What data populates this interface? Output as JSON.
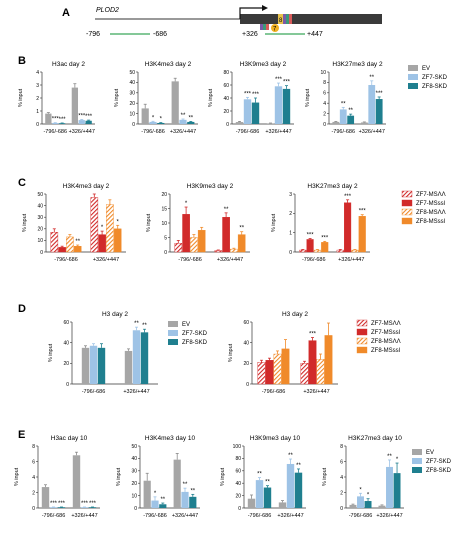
{
  "colors": {
    "EV": "#a6a6a6",
    "ZF7-SKD": "#9ec3e6",
    "ZF8-SKD": "#1f7f8f",
    "ZF7-MS": "#d12a2a",
    "ZF8-MS": "#f08a2a",
    "axis": "#333333",
    "gene_box": "#3a3a3a",
    "primer_line": "#3aa65a"
  },
  "panel_labels": [
    "A",
    "B",
    "C",
    "D",
    "E"
  ],
  "panel_a": {
    "gene": "PLOD2",
    "primer1_left": "-796",
    "primer1_right": "-686",
    "primer2_left": "+326",
    "primer2_right": "+447",
    "zf_marks": [
      "8",
      "7"
    ]
  },
  "legends": {
    "skd": [
      "EV",
      "ZF7-SKD",
      "ZF8-SKD"
    ],
    "ms": [
      "ZF7-MSΛΛ",
      "ZF7-MSssl",
      "ZF8-MSΛΛ",
      "ZF8-MSssl"
    ]
  },
  "chart_data": [
    {
      "panel": "B",
      "type": "bar",
      "title": "H3ac day 2",
      "ylabel": "% input",
      "categories": [
        "-796/-686",
        "+326/+447"
      ],
      "ylim": [
        0,
        4
      ],
      "yticks": [
        0,
        1,
        2,
        3,
        4
      ],
      "series": [
        {
          "name": "EV",
          "values": [
            0.8,
            2.8
          ],
          "errors": [
            0.08,
            0.3
          ]
        },
        {
          "name": "ZF7-SKD",
          "values": [
            0.08,
            0.3
          ],
          "errors": [
            0.02,
            0.05
          ]
        },
        {
          "name": "ZF8-SKD",
          "values": [
            0.06,
            0.25
          ],
          "errors": [
            0.02,
            0.05
          ]
        }
      ],
      "annotations": [
        [
          "",
          "***",
          "***"
        ],
        [
          "",
          "***",
          "***"
        ]
      ]
    },
    {
      "panel": "B",
      "type": "bar",
      "title": "H3K4me3 day 2",
      "ylabel": "% input",
      "categories": [
        "-796/-686",
        "+326/+447"
      ],
      "ylim": [
        0,
        50
      ],
      "yticks": [
        0,
        10,
        20,
        30,
        40,
        50
      ],
      "series": [
        {
          "name": "EV",
          "values": [
            15,
            41
          ],
          "errors": [
            4,
            3
          ]
        },
        {
          "name": "ZF7-SKD",
          "values": [
            2,
            4
          ],
          "errors": [
            0.6,
            0.8
          ]
        },
        {
          "name": "ZF8-SKD",
          "values": [
            1,
            2
          ],
          "errors": [
            0.4,
            0.5
          ]
        }
      ],
      "annotations": [
        [
          "",
          "*",
          "*"
        ],
        [
          "",
          "**",
          "**"
        ]
      ]
    },
    {
      "panel": "B",
      "type": "bar",
      "title": "H3K9me3 day 2",
      "ylabel": "% input",
      "categories": [
        "-796/-686",
        "+326/+447"
      ],
      "ylim": [
        0,
        80
      ],
      "yticks": [
        0,
        20,
        40,
        60,
        80
      ],
      "series": [
        {
          "name": "EV",
          "values": [
            3,
            1
          ],
          "errors": [
            1,
            0.5
          ]
        },
        {
          "name": "ZF7-SKD",
          "values": [
            38,
            58
          ],
          "errors": [
            3,
            5
          ]
        },
        {
          "name": "ZF8-SKD",
          "values": [
            33,
            54
          ],
          "errors": [
            7,
            5
          ]
        }
      ],
      "annotations": [
        [
          "",
          "***",
          "***"
        ],
        [
          "",
          "***",
          "***"
        ]
      ]
    },
    {
      "panel": "B",
      "type": "bar",
      "title": "H3K27me3 day 2",
      "ylabel": "% input",
      "categories": [
        "-796/-686",
        "+326/+447"
      ],
      "ylim": [
        0,
        10
      ],
      "yticks": [
        0,
        2,
        4,
        6,
        8,
        10
      ],
      "series": [
        {
          "name": "EV",
          "values": [
            0.4,
            0.3
          ],
          "errors": [
            0.1,
            0.1
          ]
        },
        {
          "name": "ZF7-SKD",
          "values": [
            2.8,
            7.5
          ],
          "errors": [
            0.4,
            0.8
          ]
        },
        {
          "name": "ZF8-SKD",
          "values": [
            1.6,
            4.8
          ],
          "errors": [
            0.3,
            0.4
          ]
        }
      ],
      "annotations": [
        [
          "",
          "**",
          "**"
        ],
        [
          "",
          "**",
          "***"
        ]
      ]
    },
    {
      "panel": "C",
      "type": "bar",
      "title": "H3K4me3 day 2",
      "ylabel": "% input",
      "categories": [
        "-796/-686",
        "+326/+447"
      ],
      "ylim": [
        0,
        50
      ],
      "yticks": [
        0,
        10,
        20,
        30,
        40,
        50
      ],
      "series": [
        {
          "name": "ZF7-MSΛΛ",
          "values": [
            17,
            47
          ],
          "errors": [
            3,
            3
          ]
        },
        {
          "name": "ZF7-MSssl",
          "values": [
            4,
            15
          ],
          "errors": [
            1,
            3
          ]
        },
        {
          "name": "ZF8-MSΛΛ",
          "values": [
            13,
            41
          ],
          "errors": [
            2,
            4
          ]
        },
        {
          "name": "ZF8-MSssl",
          "values": [
            5,
            20
          ],
          "errors": [
            1,
            3
          ]
        }
      ],
      "annotations": [
        [
          "",
          "",
          "",
          "**"
        ],
        [
          "",
          "*",
          "",
          "*"
        ]
      ]
    },
    {
      "panel": "C",
      "type": "bar",
      "title": "H3K9me3 day 2",
      "ylabel": "% input",
      "categories": [
        "-796/-686",
        "+326/+447"
      ],
      "ylim": [
        0,
        20
      ],
      "yticks": [
        0,
        5,
        10,
        15,
        20
      ],
      "series": [
        {
          "name": "ZF7-MSΛΛ",
          "values": [
            3,
            0.5
          ],
          "errors": [
            1,
            0.2
          ]
        },
        {
          "name": "ZF7-MSssl",
          "values": [
            13,
            12
          ],
          "errors": [
            2.5,
            1.5
          ]
        },
        {
          "name": "ZF8-MSΛΛ",
          "values": [
            5,
            1
          ],
          "errors": [
            1,
            0.3
          ]
        },
        {
          "name": "ZF8-MSssl",
          "values": [
            7.5,
            6
          ],
          "errors": [
            1,
            1
          ]
        }
      ],
      "annotations": [
        [
          "",
          "*",
          "",
          ""
        ],
        [
          "",
          "**",
          "",
          "**"
        ]
      ]
    },
    {
      "panel": "C",
      "type": "bar",
      "title": "H3K27me3 day 2",
      "ylabel": "% input",
      "categories": [
        "-796/-686",
        "+326/+447"
      ],
      "ylim": [
        0,
        3
      ],
      "yticks": [
        0,
        1,
        2,
        3
      ],
      "series": [
        {
          "name": "ZF7-MSΛΛ",
          "values": [
            0.1,
            0.1
          ],
          "errors": [
            0.03,
            0.03
          ]
        },
        {
          "name": "ZF7-MSssl",
          "values": [
            0.65,
            2.55
          ],
          "errors": [
            0.05,
            0.15
          ]
        },
        {
          "name": "ZF8-MSΛΛ",
          "values": [
            0.1,
            0.1
          ],
          "errors": [
            0.03,
            0.03
          ]
        },
        {
          "name": "ZF8-MSssl",
          "values": [
            0.5,
            1.85
          ],
          "errors": [
            0.05,
            0.08
          ]
        }
      ],
      "annotations": [
        [
          "",
          "***",
          "",
          "***"
        ],
        [
          "",
          "***",
          "",
          "***"
        ]
      ]
    },
    {
      "panel": "D",
      "type": "bar",
      "title": "H3 day 2",
      "ylabel": "% input",
      "categories": [
        "-796/-686",
        "+326/+447"
      ],
      "ylim": [
        0,
        60
      ],
      "yticks": [
        0,
        20,
        40,
        60
      ],
      "series": [
        {
          "name": "EV",
          "values": [
            35,
            32
          ],
          "errors": [
            2,
            2
          ]
        },
        {
          "name": "ZF7-SKD",
          "values": [
            37,
            52
          ],
          "errors": [
            2,
            3
          ]
        },
        {
          "name": "ZF8-SKD",
          "values": [
            35,
            50
          ],
          "errors": [
            4,
            3
          ]
        }
      ],
      "annotations": [
        [
          "",
          "",
          ""
        ],
        [
          "",
          "**",
          "**"
        ]
      ]
    },
    {
      "panel": "D",
      "type": "bar",
      "title": "H3 day 2",
      "ylabel": "% input",
      "categories": [
        "-796/-686",
        "+326/+447"
      ],
      "ylim": [
        0,
        60
      ],
      "yticks": [
        0,
        20,
        40,
        60
      ],
      "series": [
        {
          "name": "ZF7-MSΛΛ",
          "values": [
            21,
            20
          ],
          "errors": [
            2,
            2
          ]
        },
        {
          "name": "ZF7-MSssl",
          "values": [
            23,
            42
          ],
          "errors": [
            2,
            3
          ]
        },
        {
          "name": "ZF8-MSΛΛ",
          "values": [
            29,
            24
          ],
          "errors": [
            3,
            5
          ]
        },
        {
          "name": "ZF8-MSssl",
          "values": [
            34,
            47
          ],
          "errors": [
            9,
            12
          ]
        }
      ],
      "annotations": [
        [
          "",
          "",
          "",
          ""
        ],
        [
          "",
          "***",
          "",
          ""
        ]
      ]
    },
    {
      "panel": "E",
      "type": "bar",
      "title": "H3ac day 10",
      "ylabel": "% input",
      "categories": [
        "-796/-686",
        "+326/+447"
      ],
      "ylim": [
        0,
        8
      ],
      "yticks": [
        0,
        2,
        4,
        6,
        8
      ],
      "series": [
        {
          "name": "EV",
          "values": [
            2.7,
            6.8
          ],
          "errors": [
            0.3,
            0.4
          ]
        },
        {
          "name": "ZF7-SKD",
          "values": [
            0.1,
            0.1
          ],
          "errors": [
            0.03,
            0.03
          ]
        },
        {
          "name": "ZF8-SKD",
          "values": [
            0.1,
            0.1
          ],
          "errors": [
            0.03,
            0.03
          ]
        }
      ],
      "annotations": [
        [
          "",
          "***",
          "***"
        ],
        [
          "",
          "***",
          "***"
        ]
      ]
    },
    {
      "panel": "E",
      "type": "bar",
      "title": "H3K4me3 day 10",
      "ylabel": "% input",
      "categories": [
        "-796/-686",
        "+326/+447"
      ],
      "ylim": [
        0,
        50
      ],
      "yticks": [
        0,
        10,
        20,
        30,
        40,
        50
      ],
      "series": [
        {
          "name": "EV",
          "values": [
            22,
            39
          ],
          "errors": [
            6,
            5
          ]
        },
        {
          "name": "ZF7-SKD",
          "values": [
            6,
            13
          ],
          "errors": [
            3,
            3
          ]
        },
        {
          "name": "ZF8-SKD",
          "values": [
            3,
            9
          ],
          "errors": [
            1,
            2
          ]
        }
      ],
      "annotations": [
        [
          "",
          "*",
          "**"
        ],
        [
          "",
          "**",
          "**"
        ]
      ]
    },
    {
      "panel": "E",
      "type": "bar",
      "title": "H3K9me3 day 10",
      "ylabel": "% input",
      "categories": [
        "-796/-686",
        "+326/+447"
      ],
      "ylim": [
        0,
        100
      ],
      "yticks": [
        0,
        20,
        40,
        60,
        80,
        100
      ],
      "series": [
        {
          "name": "EV",
          "values": [
            15,
            9
          ],
          "errors": [
            6,
            3
          ]
        },
        {
          "name": "ZF7-SKD",
          "values": [
            45,
            71
          ],
          "errors": [
            4,
            8
          ]
        },
        {
          "name": "ZF8-SKD",
          "values": [
            33,
            57
          ],
          "errors": [
            3,
            6
          ]
        }
      ],
      "annotations": [
        [
          "",
          "**",
          "**"
        ],
        [
          "",
          "**",
          "**"
        ]
      ]
    },
    {
      "panel": "E",
      "type": "bar",
      "title": "H3K27me3 day 10",
      "ylabel": "% input",
      "categories": [
        "-796/-686",
        "+326/+447"
      ],
      "ylim": [
        0,
        8
      ],
      "yticks": [
        0,
        2,
        4,
        6,
        8
      ],
      "series": [
        {
          "name": "EV",
          "values": [
            0.4,
            0.3
          ],
          "errors": [
            0.1,
            0.1
          ]
        },
        {
          "name": "ZF7-SKD",
          "values": [
            1.5,
            5.3
          ],
          "errors": [
            0.4,
            0.9
          ]
        },
        {
          "name": "ZF8-SKD",
          "values": [
            0.9,
            4.5
          ],
          "errors": [
            0.3,
            1.3
          ]
        }
      ],
      "annotations": [
        [
          "",
          "*",
          "*"
        ],
        [
          "",
          "**",
          "*"
        ]
      ]
    }
  ]
}
